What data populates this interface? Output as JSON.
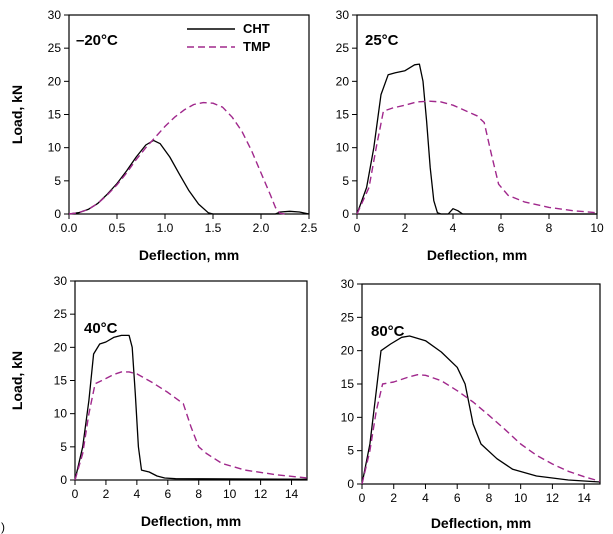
{
  "chart_data": [
    {
      "type": "line",
      "annotation": "–20°C",
      "xlabel": "Deflection, mm",
      "ylabel": "Load, kN",
      "xlim": [
        0,
        2.5
      ],
      "ylim": [
        0,
        30
      ],
      "xticks": [
        "0.0",
        "0.5",
        "1.0",
        "1.5",
        "2.0",
        "2.5"
      ],
      "yticks": [
        "0",
        "5",
        "10",
        "15",
        "20",
        "25",
        "30"
      ],
      "legend": {
        "position": "top-right",
        "entries": [
          "CHT",
          "TMP"
        ]
      },
      "series": [
        {
          "name": "CHT",
          "color": "#000000",
          "style": "solid",
          "points": [
            [
              0,
              0
            ],
            [
              0.1,
              0.2
            ],
            [
              0.2,
              0.7
            ],
            [
              0.3,
              1.6
            ],
            [
              0.4,
              3.0
            ],
            [
              0.5,
              4.6
            ],
            [
              0.6,
              6.5
            ],
            [
              0.7,
              8.6
            ],
            [
              0.8,
              10.4
            ],
            [
              0.88,
              11.1
            ],
            [
              0.95,
              10.6
            ],
            [
              1.05,
              8.6
            ],
            [
              1.15,
              6.0
            ],
            [
              1.25,
              3.5
            ],
            [
              1.35,
              1.5
            ],
            [
              1.45,
              0.2
            ],
            [
              1.5,
              0
            ],
            [
              2.15,
              0
            ],
            [
              2.2,
              0.3
            ],
            [
              2.3,
              0.4
            ],
            [
              2.4,
              0.3
            ],
            [
              2.5,
              0
            ]
          ]
        },
        {
          "name": "TMP",
          "color": "#a0288c",
          "style": "dashed",
          "points": [
            [
              0,
              0
            ],
            [
              0.1,
              0.2
            ],
            [
              0.2,
              0.7
            ],
            [
              0.3,
              1.6
            ],
            [
              0.4,
              2.9
            ],
            [
              0.5,
              4.4
            ],
            [
              0.6,
              6.2
            ],
            [
              0.7,
              8.2
            ],
            [
              0.8,
              10.0
            ],
            [
              0.9,
              11.6
            ],
            [
              1.0,
              13.2
            ],
            [
              1.1,
              14.6
            ],
            [
              1.2,
              15.7
            ],
            [
              1.3,
              16.5
            ],
            [
              1.4,
              16.8
            ],
            [
              1.5,
              16.7
            ],
            [
              1.6,
              16.1
            ],
            [
              1.7,
              14.6
            ],
            [
              1.8,
              12.5
            ],
            [
              1.9,
              9.6
            ],
            [
              2.0,
              6.2
            ],
            [
              2.1,
              2.8
            ],
            [
              2.15,
              1.0
            ],
            [
              2.2,
              0.1
            ],
            [
              2.25,
              0
            ]
          ]
        }
      ]
    },
    {
      "type": "line",
      "annotation": "25°C",
      "xlabel": "Deflection, mm",
      "ylabel": "",
      "xlim": [
        0,
        10
      ],
      "ylim": [
        0,
        30
      ],
      "xticks": [
        "0",
        "2",
        "4",
        "6",
        "8",
        "10"
      ],
      "yticks": [
        "0",
        "5",
        "10",
        "15",
        "20",
        "25",
        "30"
      ],
      "series": [
        {
          "name": "CHT",
          "color": "#000000",
          "style": "solid",
          "points": [
            [
              0,
              0
            ],
            [
              0.4,
              4
            ],
            [
              0.7,
              10
            ],
            [
              1.0,
              18
            ],
            [
              1.3,
              21
            ],
            [
              1.6,
              21.3
            ],
            [
              2.0,
              21.6
            ],
            [
              2.4,
              22.5
            ],
            [
              2.6,
              22.6
            ],
            [
              2.75,
              20
            ],
            [
              2.9,
              14
            ],
            [
              3.05,
              7
            ],
            [
              3.2,
              2
            ],
            [
              3.35,
              0.2
            ],
            [
              3.5,
              0
            ],
            [
              3.8,
              0
            ],
            [
              4.0,
              0.8
            ],
            [
              4.2,
              0.5
            ],
            [
              4.4,
              0
            ],
            [
              10,
              0
            ]
          ]
        },
        {
          "name": "TMP",
          "color": "#a0288c",
          "style": "dashed",
          "points": [
            [
              0,
              0
            ],
            [
              0.5,
              4
            ],
            [
              0.8,
              10
            ],
            [
              1.1,
              15.5
            ],
            [
              1.5,
              16
            ],
            [
              2.0,
              16.4
            ],
            [
              2.5,
              16.9
            ],
            [
              3.0,
              17
            ],
            [
              3.5,
              16.9
            ],
            [
              4.0,
              16.4
            ],
            [
              4.5,
              15.6
            ],
            [
              5.0,
              14.8
            ],
            [
              5.3,
              13.8
            ],
            [
              5.6,
              9
            ],
            [
              5.9,
              4.5
            ],
            [
              6.3,
              2.8
            ],
            [
              7.0,
              1.8
            ],
            [
              8.0,
              1.0
            ],
            [
              9.0,
              0.5
            ],
            [
              10,
              0.2
            ]
          ]
        }
      ]
    },
    {
      "type": "line",
      "annotation": "40°C",
      "xlabel": "Deflection, mm",
      "ylabel": "Load, kN",
      "xlim": [
        0,
        15
      ],
      "ylim": [
        0,
        30
      ],
      "xticks": [
        "0",
        "2",
        "4",
        "6",
        "8",
        "10",
        "12",
        "14"
      ],
      "yticks": [
        "0",
        "5",
        "10",
        "15",
        "20",
        "25",
        "30"
      ],
      "series": [
        {
          "name": "CHT",
          "color": "#000000",
          "style": "solid",
          "points": [
            [
              0,
              0
            ],
            [
              0.5,
              5
            ],
            [
              0.9,
              12
            ],
            [
              1.2,
              19
            ],
            [
              1.6,
              20.5
            ],
            [
              2.0,
              20.8
            ],
            [
              2.5,
              21.5
            ],
            [
              3.0,
              21.8
            ],
            [
              3.5,
              21.8
            ],
            [
              3.7,
              20
            ],
            [
              3.9,
              13
            ],
            [
              4.1,
              5
            ],
            [
              4.3,
              1.5
            ],
            [
              4.8,
              1.2
            ],
            [
              5.3,
              0.6
            ],
            [
              5.8,
              0.3
            ],
            [
              6.5,
              0.2
            ],
            [
              15,
              0.1
            ]
          ]
        },
        {
          "name": "TMP",
          "color": "#a0288c",
          "style": "dashed",
          "points": [
            [
              0,
              0
            ],
            [
              0.5,
              4
            ],
            [
              0.9,
              10
            ],
            [
              1.3,
              14.5
            ],
            [
              2.0,
              15.3
            ],
            [
              2.5,
              15.9
            ],
            [
              3.0,
              16.3
            ],
            [
              3.5,
              16.3
            ],
            [
              4.0,
              16
            ],
            [
              5.0,
              14.7
            ],
            [
              6.0,
              13.2
            ],
            [
              7.0,
              11.5
            ],
            [
              7.5,
              8
            ],
            [
              8.0,
              5
            ],
            [
              8.5,
              4
            ],
            [
              9.5,
              2.5
            ],
            [
              11,
              1.5
            ],
            [
              13,
              0.8
            ],
            [
              15,
              0.3
            ]
          ]
        }
      ]
    },
    {
      "type": "line",
      "annotation": "80°C",
      "xlabel": "Deflection, mm",
      "ylabel": "",
      "xlim": [
        0,
        15
      ],
      "ylim": [
        0,
        30
      ],
      "xticks": [
        "0",
        "2",
        "4",
        "6",
        "8",
        "10",
        "12",
        "14"
      ],
      "yticks": [
        "0",
        "5",
        "10",
        "15",
        "20",
        "25",
        "30"
      ],
      "series": [
        {
          "name": "CHT",
          "color": "#000000",
          "style": "solid",
          "points": [
            [
              0,
              0
            ],
            [
              0.5,
              6
            ],
            [
              0.9,
              14
            ],
            [
              1.2,
              20
            ],
            [
              1.8,
              21
            ],
            [
              2.5,
              22
            ],
            [
              3.0,
              22.2
            ],
            [
              4.0,
              21.5
            ],
            [
              5.0,
              19.8
            ],
            [
              6.0,
              17.5
            ],
            [
              6.5,
              15
            ],
            [
              7.0,
              9
            ],
            [
              7.5,
              6
            ],
            [
              8.5,
              3.8
            ],
            [
              9.5,
              2.2
            ],
            [
              11,
              1.2
            ],
            [
              13,
              0.6
            ],
            [
              15,
              0.3
            ]
          ]
        },
        {
          "name": "TMP",
          "color": "#a0288c",
          "style": "dashed",
          "points": [
            [
              0,
              0
            ],
            [
              0.5,
              5
            ],
            [
              0.9,
              11
            ],
            [
              1.3,
              15
            ],
            [
              2.0,
              15.3
            ],
            [
              3.0,
              16.1
            ],
            [
              3.5,
              16.4
            ],
            [
              4.0,
              16.3
            ],
            [
              5.0,
              15.5
            ],
            [
              6.0,
              14
            ],
            [
              7.0,
              12.3
            ],
            [
              8.0,
              10.3
            ],
            [
              9.0,
              8.2
            ],
            [
              10.0,
              6
            ],
            [
              11.0,
              4.3
            ],
            [
              12.0,
              3
            ],
            [
              13.0,
              1.9
            ],
            [
              14.0,
              1.1
            ],
            [
              15,
              0.4
            ]
          ]
        }
      ]
    }
  ],
  "corner_text": ")"
}
